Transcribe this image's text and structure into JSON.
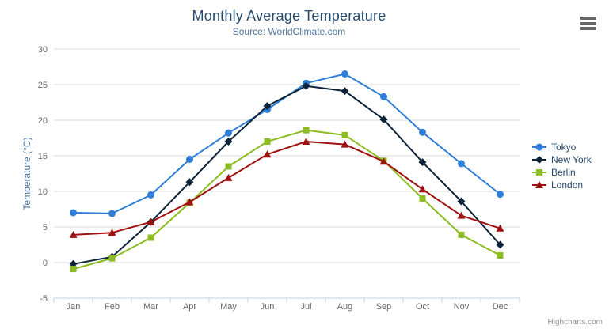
{
  "chart_data": {
    "type": "line",
    "title": "Monthly Average Temperature",
    "subtitle": "Source: WorldClimate.com",
    "xlabel": "",
    "ylabel": "Temperature (°C)",
    "ylim": [
      -5,
      30
    ],
    "ytick_interval": 5,
    "grid": true,
    "legend_position": "right",
    "categories": [
      "Jan",
      "Feb",
      "Mar",
      "Apr",
      "May",
      "Jun",
      "Jul",
      "Aug",
      "Sep",
      "Oct",
      "Nov",
      "Dec"
    ],
    "series": [
      {
        "name": "Tokyo",
        "color": "#2f7ed8",
        "marker": "circle",
        "values": [
          7.0,
          6.9,
          9.5,
          14.5,
          18.2,
          21.5,
          25.2,
          26.5,
          23.3,
          18.3,
          13.9,
          9.6
        ]
      },
      {
        "name": "New York",
        "color": "#0d233a",
        "marker": "diamond",
        "values": [
          -0.2,
          0.8,
          5.7,
          11.3,
          17.0,
          22.0,
          24.8,
          24.1,
          20.1,
          14.1,
          8.6,
          2.5
        ]
      },
      {
        "name": "Berlin",
        "color": "#8bbc21",
        "marker": "square",
        "values": [
          -0.9,
          0.6,
          3.5,
          8.4,
          13.5,
          17.0,
          18.6,
          17.9,
          14.3,
          9.0,
          3.9,
          1.0
        ]
      },
      {
        "name": "London",
        "color": "#a01010",
        "marker": "triangle",
        "values": [
          3.9,
          4.2,
          5.7,
          8.5,
          11.9,
          15.2,
          17.0,
          16.6,
          14.2,
          10.3,
          6.6,
          4.8
        ]
      }
    ],
    "credits": "Highcharts.com"
  }
}
